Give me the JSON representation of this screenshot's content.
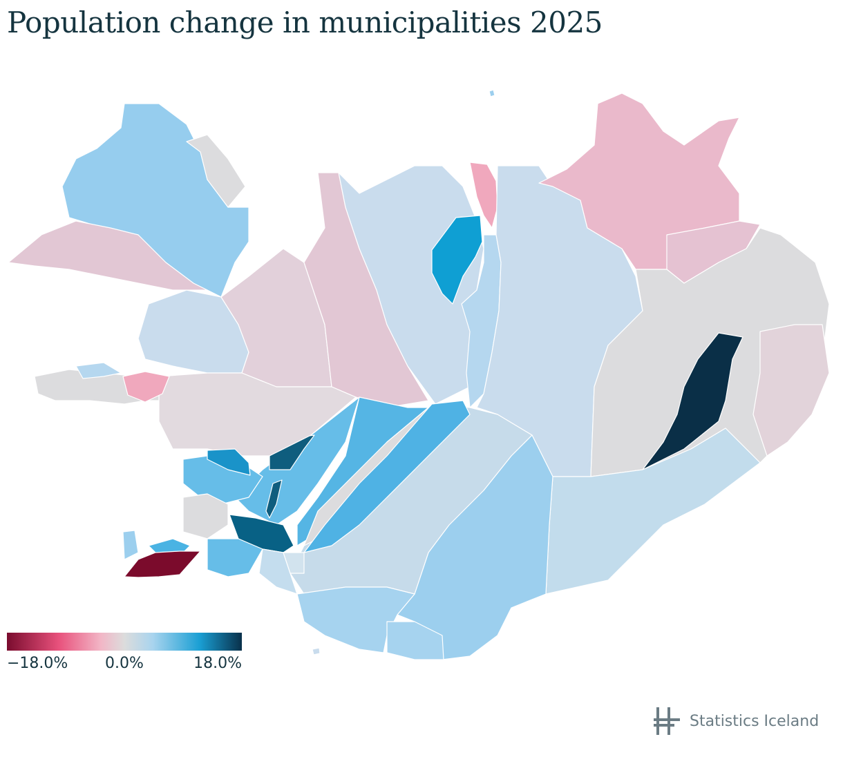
{
  "title": "Population change in municipalities 2025",
  "legend": {
    "min_label": "−18.0%",
    "mid_label": "0.0%",
    "max_label": "18.0%",
    "scale": {
      "min": -18,
      "mid": 0,
      "max": 18
    },
    "colors": {
      "strong_negative": "#7a0c2e",
      "negative": "#e8517c",
      "slight_negative": "#f2b6c6",
      "neutral": "#dcdcdc",
      "slight_positive": "#a9d4ee",
      "positive": "#1a9fd4",
      "strong_positive": "#09304a"
    }
  },
  "publisher": {
    "name": "Statistics Iceland",
    "logo_icon": "statistics-iceland-logo-icon"
  }
}
